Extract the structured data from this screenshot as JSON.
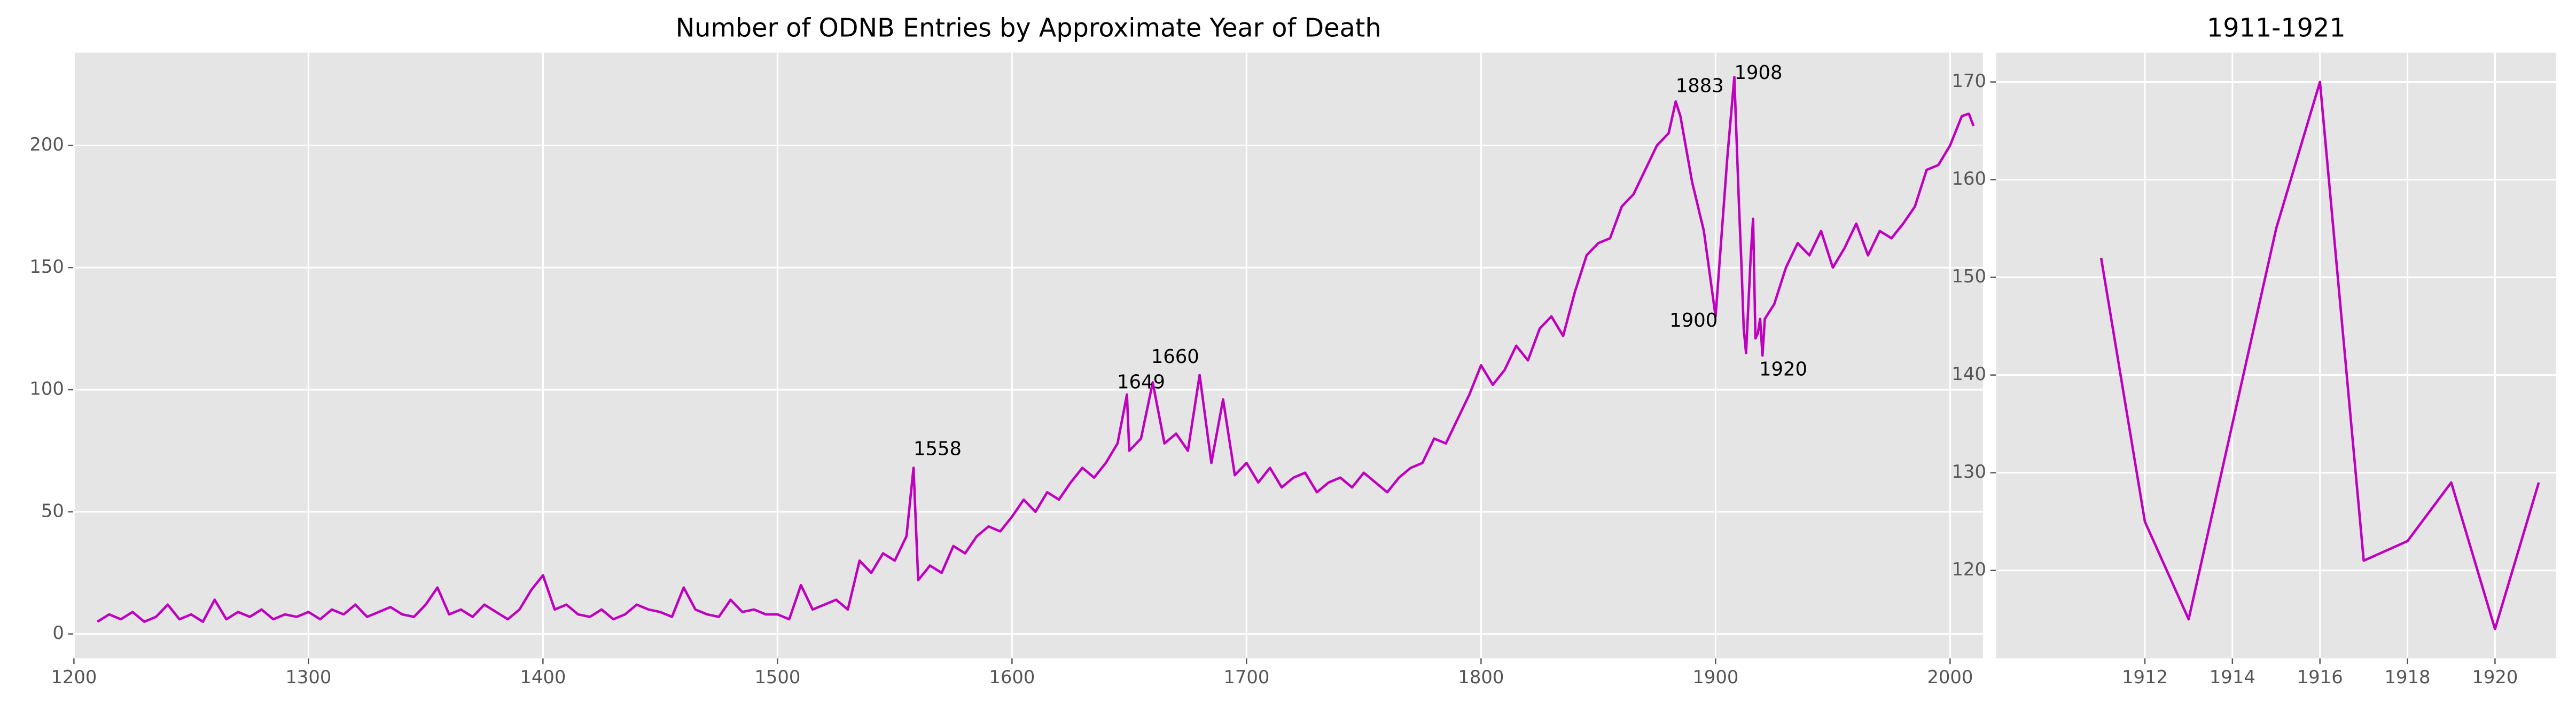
{
  "chart_data": [
    {
      "type": "line",
      "title": "Number of ODNB Entries by Approximate Year of Death",
      "color": "#bf00bf",
      "grid": true,
      "x": [
        1210,
        1215,
        1220,
        1225,
        1230,
        1235,
        1240,
        1245,
        1250,
        1255,
        1260,
        1265,
        1270,
        1275,
        1280,
        1285,
        1290,
        1295,
        1300,
        1305,
        1310,
        1315,
        1320,
        1325,
        1330,
        1335,
        1340,
        1345,
        1350,
        1355,
        1360,
        1365,
        1370,
        1375,
        1380,
        1385,
        1390,
        1395,
        1400,
        1405,
        1410,
        1415,
        1420,
        1425,
        1430,
        1435,
        1440,
        1445,
        1450,
        1455,
        1460,
        1465,
        1470,
        1475,
        1480,
        1485,
        1490,
        1495,
        1500,
        1505,
        1510,
        1515,
        1520,
        1525,
        1530,
        1535,
        1540,
        1545,
        1550,
        1555,
        1558,
        1560,
        1565,
        1570,
        1575,
        1580,
        1585,
        1590,
        1595,
        1600,
        1605,
        1610,
        1615,
        1620,
        1625,
        1630,
        1635,
        1640,
        1645,
        1649,
        1650,
        1655,
        1660,
        1665,
        1670,
        1675,
        1680,
        1685,
        1690,
        1695,
        1700,
        1705,
        1710,
        1715,
        1720,
        1725,
        1730,
        1735,
        1740,
        1745,
        1750,
        1755,
        1760,
        1765,
        1770,
        1775,
        1780,
        1785,
        1790,
        1795,
        1800,
        1805,
        1810,
        1815,
        1820,
        1825,
        1830,
        1835,
        1840,
        1845,
        1850,
        1855,
        1860,
        1865,
        1870,
        1875,
        1880,
        1883,
        1885,
        1890,
        1895,
        1900,
        1905,
        1908,
        1910,
        1911,
        1912,
        1913,
        1914,
        1915,
        1916,
        1917,
        1918,
        1919,
        1920,
        1921,
        1925,
        1930,
        1935,
        1940,
        1945,
        1950,
        1955,
        1960,
        1965,
        1970,
        1975,
        1980,
        1985,
        1990,
        1995,
        2000,
        2005,
        2008,
        2010
      ],
      "values": [
        5,
        8,
        6,
        9,
        5,
        7,
        12,
        6,
        8,
        5,
        14,
        6,
        9,
        7,
        10,
        6,
        8,
        7,
        9,
        6,
        10,
        8,
        12,
        7,
        9,
        11,
        8,
        7,
        12,
        19,
        8,
        10,
        7,
        12,
        9,
        6,
        10,
        18,
        24,
        10,
        12,
        8,
        7,
        10,
        6,
        8,
        12,
        10,
        9,
        7,
        19,
        10,
        8,
        7,
        14,
        9,
        10,
        8,
        8,
        6,
        20,
        10,
        12,
        14,
        10,
        30,
        25,
        33,
        30,
        40,
        68,
        22,
        28,
        25,
        36,
        33,
        40,
        44,
        42,
        48,
        55,
        50,
        58,
        55,
        62,
        68,
        64,
        70,
        78,
        98,
        75,
        80,
        103,
        78,
        82,
        75,
        106,
        70,
        96,
        65,
        70,
        62,
        68,
        60,
        64,
        66,
        58,
        62,
        64,
        60,
        66,
        62,
        58,
        64,
        68,
        70,
        80,
        78,
        88,
        98,
        110,
        102,
        108,
        118,
        112,
        125,
        130,
        122,
        140,
        155,
        160,
        162,
        175,
        180,
        190,
        200,
        205,
        218,
        212,
        185,
        165,
        130,
        195,
        228,
        175,
        152,
        125,
        115,
        135,
        155,
        170,
        121,
        123,
        129,
        114,
        129,
        135,
        150,
        160,
        155,
        165,
        150,
        158,
        168,
        155,
        165,
        162,
        168,
        175,
        190,
        192,
        200,
        212,
        213,
        208
      ],
      "xlim": [
        1200,
        2014
      ],
      "ylim": [
        -10,
        238
      ],
      "xticks": [
        1200,
        1300,
        1400,
        1500,
        1600,
        1700,
        1800,
        1900,
        2000
      ],
      "yticks": [
        0,
        50,
        100,
        150,
        200
      ],
      "annotations": [
        {
          "text": "1558",
          "x": 1558
        },
        {
          "text": "1649",
          "x": 1649
        },
        {
          "text": "1660",
          "x": 1660
        },
        {
          "text": "1883",
          "x": 1883
        },
        {
          "text": "1908",
          "x": 1908
        },
        {
          "text": "1900",
          "x": 1900
        },
        {
          "text": "1920",
          "x": 1920
        }
      ]
    },
    {
      "type": "line",
      "title": "1911-1921",
      "color": "#bf00bf",
      "grid": true,
      "x": [
        1911,
        1912,
        1913,
        1914,
        1915,
        1916,
        1917,
        1918,
        1919,
        1920,
        1921
      ],
      "values": [
        152,
        125,
        115,
        135,
        155,
        170,
        121,
        123,
        129,
        114,
        129
      ],
      "xlim": [
        1908.6,
        1921.4
      ],
      "ylim": [
        111,
        173
      ],
      "xticks": [
        1912,
        1914,
        1916,
        1918,
        1920
      ],
      "yticks": [
        120,
        130,
        140,
        150,
        160,
        170
      ]
    }
  ]
}
